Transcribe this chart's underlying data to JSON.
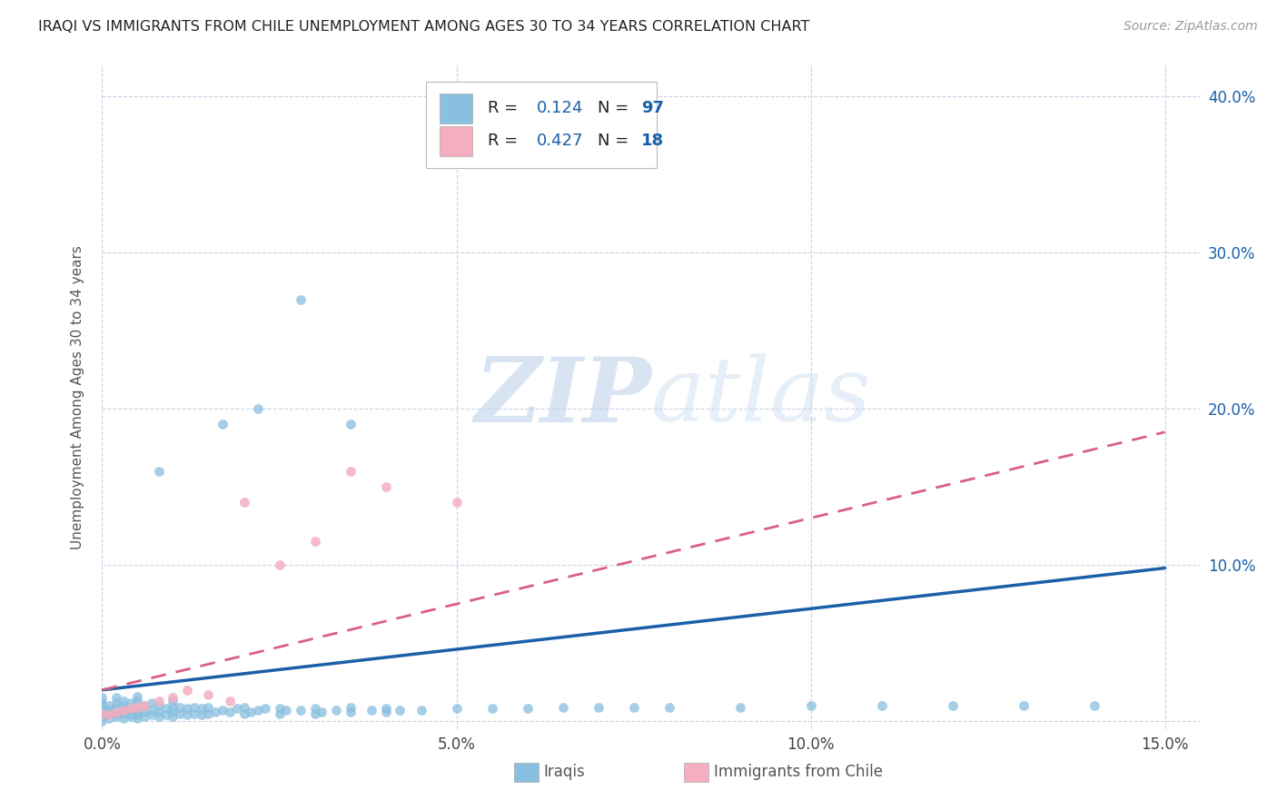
{
  "title": "IRAQI VS IMMIGRANTS FROM CHILE UNEMPLOYMENT AMONG AGES 30 TO 34 YEARS CORRELATION CHART",
  "source": "Source: ZipAtlas.com",
  "ylabel": "Unemployment Among Ages 30 to 34 years",
  "xlim": [
    0.0,
    0.155
  ],
  "ylim": [
    -0.005,
    0.42
  ],
  "xticks": [
    0.0,
    0.05,
    0.1,
    0.15
  ],
  "xtick_labels": [
    "0.0%",
    "5.0%",
    "10.0%",
    "15.0%"
  ],
  "yticks": [
    0.0,
    0.1,
    0.2,
    0.3,
    0.4
  ],
  "ytick_labels": [
    "",
    "10.0%",
    "20.0%",
    "30.0%",
    "40.0%"
  ],
  "iraqi_color": "#89bfe0",
  "chile_color": "#f5aec0",
  "iraqi_line_color": "#1a5fa8",
  "chile_line_color": "#d96080",
  "R_iraqi": 0.124,
  "N_iraqi": 97,
  "R_chile": 0.427,
  "N_chile": 18,
  "background_color": "#ffffff",
  "grid_color": "#c8d4e8",
  "watermark_zip": "ZIP",
  "watermark_atlas": "atlas",
  "iraqi_x": [
    0.0,
    0.0,
    0.0,
    0.0,
    0.0,
    0.0,
    0.0,
    0.001,
    0.001,
    0.001,
    0.001,
    0.002,
    0.002,
    0.002,
    0.002,
    0.002,
    0.003,
    0.003,
    0.003,
    0.003,
    0.003,
    0.004,
    0.004,
    0.004,
    0.004,
    0.005,
    0.005,
    0.005,
    0.005,
    0.005,
    0.005,
    0.006,
    0.006,
    0.006,
    0.007,
    0.007,
    0.007,
    0.008,
    0.008,
    0.008,
    0.009,
    0.009,
    0.01,
    0.01,
    0.01,
    0.01,
    0.011,
    0.011,
    0.012,
    0.012,
    0.013,
    0.013,
    0.014,
    0.014,
    0.015,
    0.015,
    0.016,
    0.017,
    0.018,
    0.019,
    0.02,
    0.02,
    0.021,
    0.022,
    0.023,
    0.025,
    0.025,
    0.026,
    0.028,
    0.03,
    0.03,
    0.031,
    0.033,
    0.035,
    0.035,
    0.038,
    0.04,
    0.04,
    0.042,
    0.045,
    0.05,
    0.055,
    0.06,
    0.065,
    0.07,
    0.075,
    0.08,
    0.09,
    0.1,
    0.11,
    0.12,
    0.13,
    0.14,
    0.017,
    0.022,
    0.008,
    0.028,
    0.035
  ],
  "iraqi_y": [
    0.0,
    0.003,
    0.005,
    0.007,
    0.01,
    0.012,
    0.015,
    0.002,
    0.004,
    0.007,
    0.01,
    0.003,
    0.005,
    0.008,
    0.012,
    0.015,
    0.002,
    0.005,
    0.007,
    0.01,
    0.013,
    0.003,
    0.005,
    0.008,
    0.012,
    0.002,
    0.004,
    0.006,
    0.009,
    0.013,
    0.016,
    0.003,
    0.006,
    0.01,
    0.004,
    0.007,
    0.012,
    0.003,
    0.006,
    0.01,
    0.004,
    0.008,
    0.003,
    0.006,
    0.009,
    0.013,
    0.005,
    0.009,
    0.004,
    0.008,
    0.005,
    0.009,
    0.004,
    0.008,
    0.005,
    0.009,
    0.006,
    0.007,
    0.006,
    0.008,
    0.005,
    0.009,
    0.006,
    0.007,
    0.008,
    0.005,
    0.008,
    0.007,
    0.007,
    0.005,
    0.008,
    0.006,
    0.007,
    0.006,
    0.009,
    0.007,
    0.006,
    0.008,
    0.007,
    0.007,
    0.008,
    0.008,
    0.008,
    0.009,
    0.009,
    0.009,
    0.009,
    0.009,
    0.01,
    0.01,
    0.01,
    0.01,
    0.01,
    0.19,
    0.2,
    0.16,
    0.27,
    0.19
  ],
  "chile_x": [
    0.0,
    0.001,
    0.002,
    0.003,
    0.004,
    0.005,
    0.006,
    0.008,
    0.01,
    0.012,
    0.015,
    0.018,
    0.02,
    0.025,
    0.03,
    0.035,
    0.04,
    0.05
  ],
  "chile_y": [
    0.005,
    0.004,
    0.006,
    0.007,
    0.008,
    0.009,
    0.01,
    0.013,
    0.015,
    0.02,
    0.017,
    0.013,
    0.14,
    0.1,
    0.115,
    0.16,
    0.15,
    0.14
  ],
  "iraqi_trend_x": [
    0.0,
    0.15
  ],
  "iraqi_trend_y": [
    0.02,
    0.098
  ],
  "chile_trend_x": [
    0.0,
    0.15
  ],
  "chile_trend_y": [
    0.02,
    0.185
  ]
}
